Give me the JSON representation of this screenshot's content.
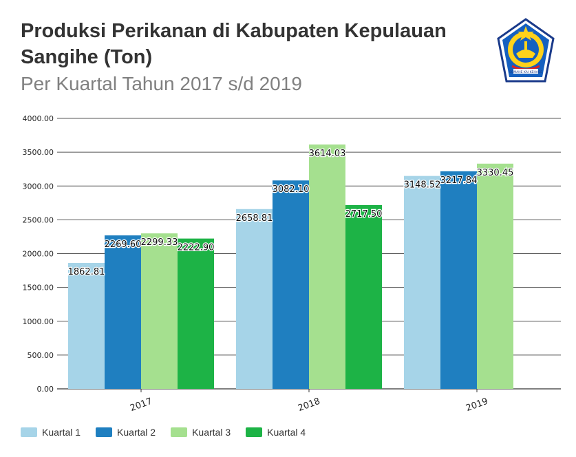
{
  "header": {
    "title": "Produksi Perikanan di Kabupaten Kepulauan Sangihe (Ton)",
    "subtitle": "Per Kuartal Tahun 2017 s/d 2019",
    "logo_text": "SOMAHE KAI KEHAGE"
  },
  "chart_data": {
    "type": "bar",
    "title": "Produksi Perikanan di Kabupaten Kepulauan Sangihe (Ton)",
    "subtitle": "Per Kuartal Tahun 2017 s/d 2019",
    "xlabel": "",
    "ylabel": "",
    "categories": [
      "2017",
      "2018",
      "2019"
    ],
    "ylim": [
      0,
      4000
    ],
    "yticks": [
      "0.00",
      "500.00",
      "1000.00",
      "1500.00",
      "2000.00",
      "2500.00",
      "3000.00",
      "3500.00",
      "4000.00"
    ],
    "grid": true,
    "legend_position": "bottom-left",
    "series": [
      {
        "name": "Kuartal 1",
        "color": "#a6d4e8",
        "values": [
          1862.81,
          2658.81,
          3148.52
        ],
        "labels": [
          "1862.81",
          "2658.81",
          "3148.52"
        ]
      },
      {
        "name": "Kuartal 2",
        "color": "#1f7fc0",
        "values": [
          2269.6,
          3082.1,
          3217.84
        ],
        "labels": [
          "2269.60",
          "3082.10",
          "3217.84"
        ]
      },
      {
        "name": "Kuartal 3",
        "color": "#a5e08f",
        "values": [
          2299.33,
          3614.03,
          3330.45
        ],
        "labels": [
          "2299.33",
          "3614.03",
          "3330.45"
        ]
      },
      {
        "name": "Kuartal 4",
        "color": "#1db346",
        "values": [
          2222.9,
          2717.5,
          null
        ],
        "labels": [
          "2222.90",
          "2717.50",
          null
        ]
      }
    ]
  }
}
